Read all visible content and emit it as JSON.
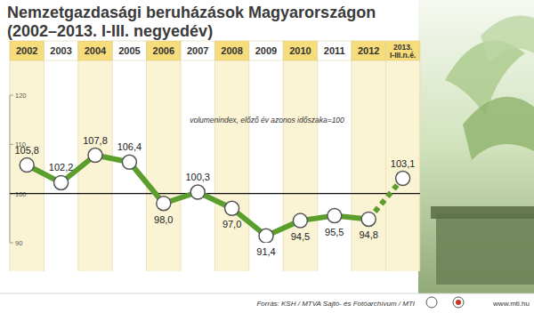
{
  "chart_data": {
    "type": "line",
    "title": "Nemzetgazdasági beruházások Magyarországon",
    "subtitle": "(2002–2013. I-III. negyedév)",
    "annotation": "volumenindex, előző év azonos időszaka=100",
    "source": "Forrás: KSH / MTVA Sajtó- és Fotóarchívum / MTI",
    "website": "www.mti.hu",
    "categories": [
      "2002",
      "2003",
      "2004",
      "2005",
      "2006",
      "2007",
      "2008",
      "2009",
      "2010",
      "2011",
      "2012",
      "2013. I-III.n.é."
    ],
    "values": [
      105.8,
      102.2,
      107.8,
      106.4,
      98.0,
      100.3,
      97.0,
      91.4,
      94.5,
      95.5,
      94.8,
      103.1
    ],
    "value_labels": [
      "105,8",
      "102,2",
      "107,8",
      "106,4",
      "98,0",
      "100,3",
      "97,0",
      "91,4",
      "94,5",
      "95,5",
      "94,8",
      "103,1"
    ],
    "color": "#5c9e2e",
    "marker": "circle",
    "data_labels": true,
    "reference_line": 100,
    "ylim": [
      90,
      120
    ],
    "yticks": [
      90,
      100,
      110,
      120
    ],
    "grid": false
  }
}
